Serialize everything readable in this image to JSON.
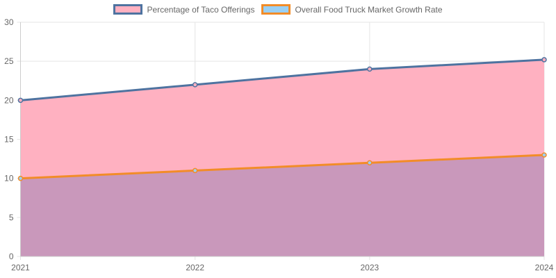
{
  "chart_data": {
    "type": "area",
    "categories": [
      "2021",
      "2022",
      "2023",
      "2024"
    ],
    "series": [
      {
        "name": "Percentage of Taco Offerings",
        "values": [
          20,
          22,
          24,
          25.2
        ],
        "border_color": "#4e73a0",
        "fill_color": "#ffb1c1"
      },
      {
        "name": "Overall Food Truck Market Growth Rate",
        "values": [
          10,
          11,
          12,
          13
        ],
        "border_color": "#f28c28",
        "fill_color": "#9ad0f5"
      }
    ],
    "overlap_fill_color": "#c998bb",
    "ylim": [
      0,
      30
    ],
    "y_ticks": [
      "0",
      "5",
      "10",
      "15",
      "20",
      "25",
      "30"
    ],
    "grid": true,
    "legend_position": "top"
  }
}
